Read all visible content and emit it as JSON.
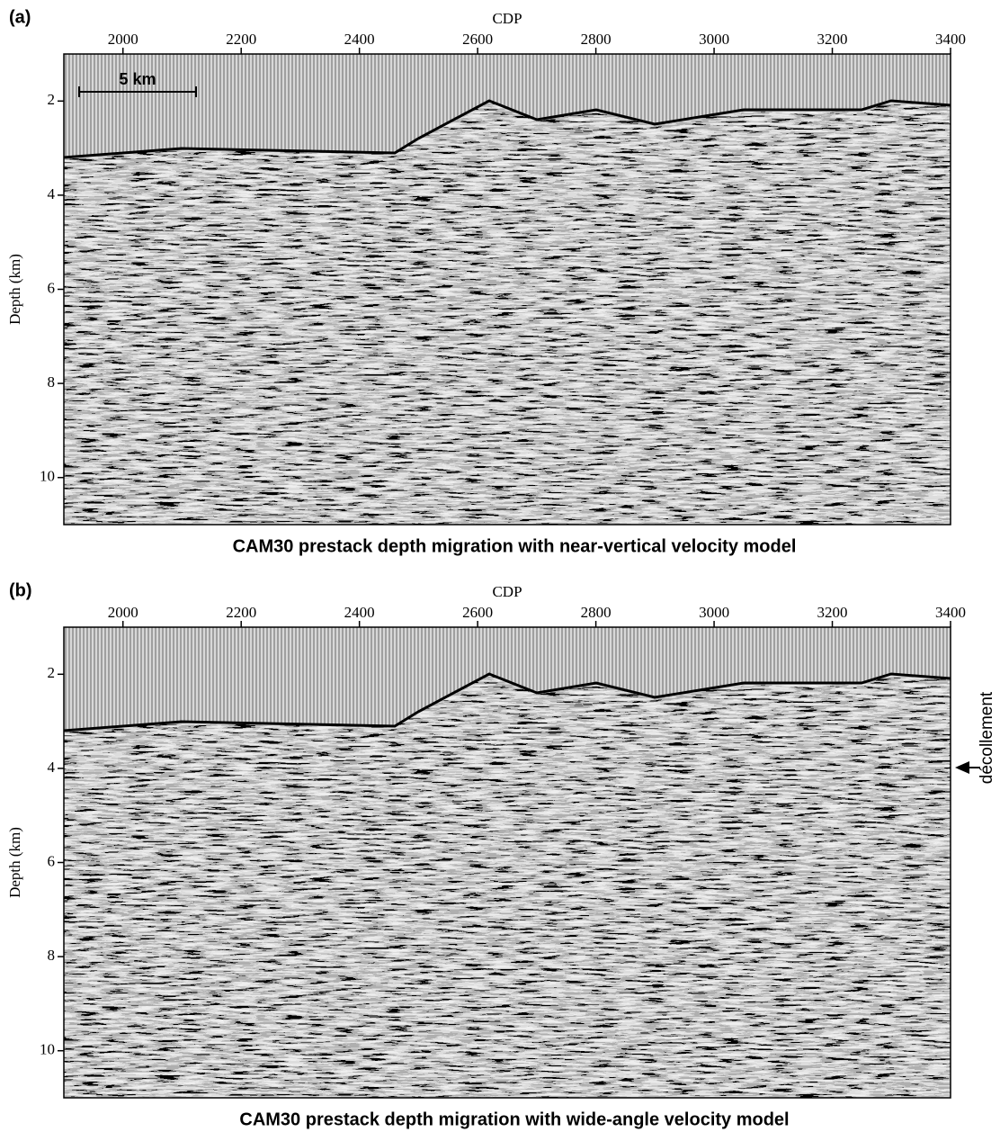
{
  "panels": [
    {
      "label": "(a)",
      "x_label": "CDP",
      "y_label": "Depth (km)",
      "xlim": [
        1900,
        3400
      ],
      "xticks": [
        2000,
        2200,
        2400,
        2600,
        2800,
        3000,
        3200,
        3400
      ],
      "ylim": [
        1,
        11
      ],
      "yticks": [
        2,
        4,
        6,
        8,
        10
      ],
      "scale_bar": "5 km",
      "caption": "CAM30 prestack depth migration with near-vertical velocity model"
    },
    {
      "label": "(b)",
      "x_label": "CDP",
      "y_label": "Depth (km)",
      "xlim": [
        1900,
        3400
      ],
      "xticks": [
        2000,
        2200,
        2400,
        2600,
        2800,
        3000,
        3200,
        3400
      ],
      "ylim": [
        1,
        11
      ],
      "yticks": [
        2,
        4,
        6,
        8,
        10
      ],
      "annotation": "décollement",
      "caption": "CAM30 prestack depth migration with wide-angle velocity model"
    }
  ]
}
